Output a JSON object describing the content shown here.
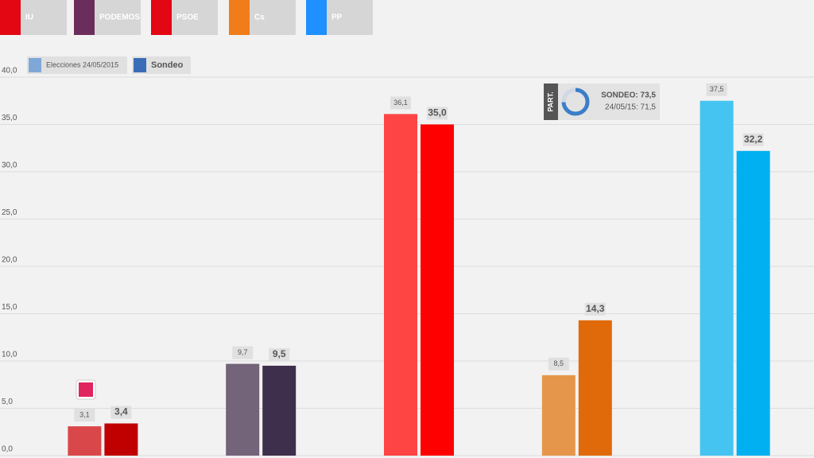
{
  "chart_data": {
    "type": "bar",
    "categories": [
      "IU",
      "PODEMOS",
      "PSOE",
      "Cs",
      "PP"
    ],
    "category_colors": [
      "#e30613",
      "#6b2d5c",
      "#e30613",
      "#f07d1a",
      "#1e90ff"
    ],
    "series": [
      {
        "name": "Elecciones 24/05/2015",
        "color": "#7fa8d8",
        "colors": [
          "#d9474a",
          "#736479",
          "#ff4444",
          "#e6964a",
          "#45c4f2"
        ],
        "values": [
          3.1,
          9.7,
          36.1,
          8.5,
          37.5
        ],
        "value_labels": [
          "3,1",
          "9,7",
          "36,1",
          "8,5",
          "37,5"
        ]
      },
      {
        "name": "Sondeo",
        "color": "#3b6cb8",
        "colors": [
          "#c00000",
          "#3e2f4c",
          "#ff0000",
          "#e06a0a",
          "#00b0f0"
        ],
        "values": [
          3.4,
          9.5,
          35.0,
          14.3,
          32.2
        ],
        "value_labels": [
          "3,4",
          "9,5",
          "35,0",
          "14,3",
          "32,2"
        ]
      }
    ],
    "ylim": [
      0,
      40
    ],
    "yticks": [
      {
        "value": 0,
        "label": "0,0"
      },
      {
        "value": 5,
        "label": "5,0"
      },
      {
        "value": 10,
        "label": "10,0"
      },
      {
        "value": 15,
        "label": "15,0"
      },
      {
        "value": 20,
        "label": "20,0"
      },
      {
        "value": 25,
        "label": "25,0"
      },
      {
        "value": 30,
        "label": "30,0"
      },
      {
        "value": 35,
        "label": "35,0"
      },
      {
        "value": 40,
        "label": "40,0"
      }
    ],
    "grid": true,
    "annotation": {
      "label": "PART.",
      "lines": [
        "SONDEO: 73,5",
        "24/05/15: 71,5"
      ]
    }
  }
}
